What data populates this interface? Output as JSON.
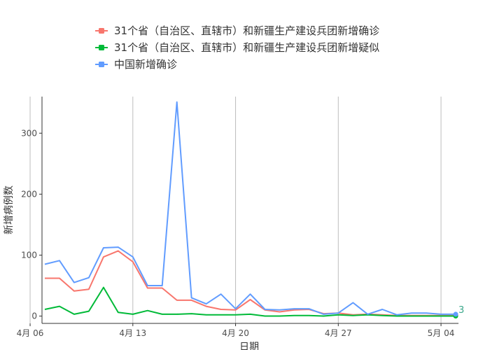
{
  "chart_data": {
    "type": "line",
    "title": "",
    "xlabel": "日期",
    "ylabel": "新增病例数",
    "start_date": "2020-04-07",
    "end_date": "2020-05-05",
    "ylim": [
      -12,
      360
    ],
    "x_ticks": [
      {
        "label": "4月 06",
        "date": "2020-04-06"
      },
      {
        "label": "4月 13",
        "date": "2020-04-13"
      },
      {
        "label": "4月 20",
        "date": "2020-04-20"
      },
      {
        "label": "4月 27",
        "date": "2020-04-27"
      },
      {
        "label": "5月 04",
        "date": "2020-05-04"
      }
    ],
    "y_ticks": [
      {
        "label": "0",
        "value": 0
      },
      {
        "label": "100",
        "value": 100
      },
      {
        "label": "200",
        "value": 200
      },
      {
        "label": "300",
        "value": 300
      }
    ],
    "grid": "vertical-major",
    "legend_position": "top",
    "series": [
      {
        "name": "31个省（自治区、直辖市）和新疆生产建设兵团新增确诊",
        "color": "#F8766D",
        "values": [
          62,
          62,
          41,
          44,
          97,
          107,
          89,
          46,
          46,
          26,
          26,
          16,
          11,
          10,
          27,
          10,
          7,
          10,
          11,
          4,
          5,
          2,
          3,
          2,
          1,
          1,
          1,
          1,
          1
        ]
      },
      {
        "name": "31个省（自治区、直辖市）和新疆生产建设兵团新增疑似",
        "color": "#00BA38",
        "values": [
          11,
          16,
          3,
          8,
          47,
          6,
          3,
          9,
          3,
          3,
          4,
          2,
          2,
          2,
          3,
          0,
          0,
          1,
          1,
          0,
          2,
          1,
          2,
          1,
          0,
          0,
          0,
          0,
          0
        ]
      },
      {
        "name": "中国新增确诊",
        "color": "#619CFF",
        "values": [
          85,
          91,
          55,
          63,
          112,
          113,
          97,
          50,
          50,
          351,
          30,
          20,
          36,
          12,
          36,
          11,
          10,
          12,
          12,
          3,
          5,
          22,
          3,
          11,
          2,
          5,
          5,
          3,
          3
        ]
      }
    ],
    "annotations": [
      {
        "text": "3",
        "date": "2020-05-05",
        "value": 3
      }
    ]
  }
}
